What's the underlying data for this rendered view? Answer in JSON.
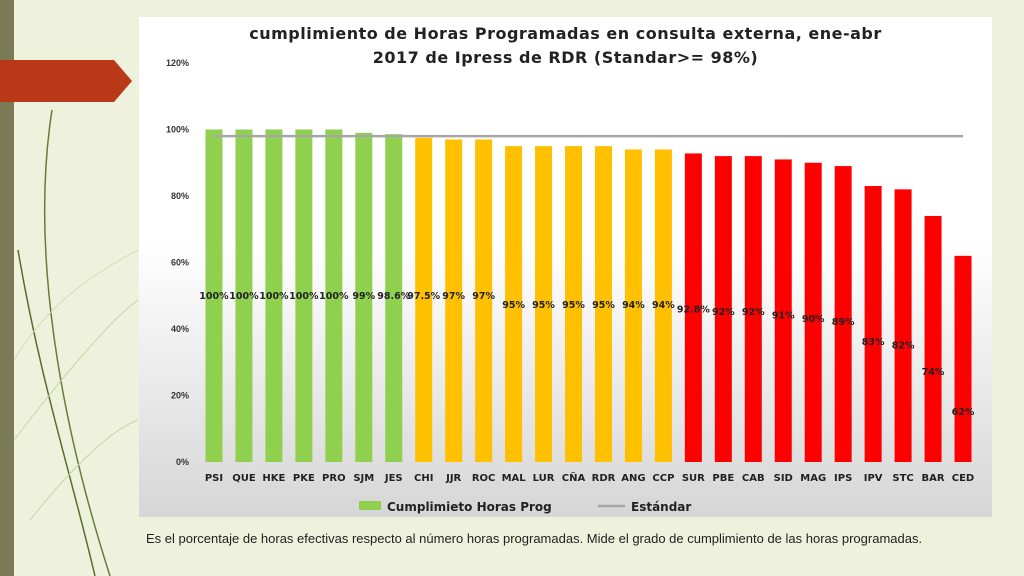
{
  "colors": {
    "green": "#8fd14f",
    "orange": "#ffc000",
    "red": "#ff0000",
    "standard_line": "#a6a6a6",
    "sidebar": "#7a7a55",
    "tab": "#b83818"
  },
  "chart_data": {
    "type": "bar",
    "title_lines": [
      "cumplimiento de Horas Programadas en consulta externa, ene-abr",
      "2017 de Ipress de RDR (Standar>= 98%)"
    ],
    "categories": [
      "PSI",
      "QUE",
      "HKE",
      "PKE",
      "PRO",
      "SJM",
      "JES",
      "CHI",
      "JJR",
      "ROC",
      "MAL",
      "LUR",
      "CÑA",
      "RDR",
      "ANG",
      "CCP",
      "SUR",
      "PBE",
      "CAB",
      "SID",
      "MAG",
      "IPS",
      "IPV",
      "STC",
      "BAR",
      "CED"
    ],
    "values": [
      100,
      100,
      100,
      100,
      100,
      99,
      98.6,
      97.5,
      97,
      97,
      95,
      95,
      95,
      95,
      94,
      94,
      92.8,
      92,
      92,
      91,
      90,
      89,
      83,
      82,
      74,
      62
    ],
    "data_labels": [
      "100%",
      "100%",
      "100%",
      "100%",
      "100%",
      "99%",
      "98.6%",
      "97.5%",
      "97%",
      "97%",
      "95%",
      "95%",
      "95%",
      "95%",
      "94%",
      "94%",
      "92.8%",
      "92%",
      "92%",
      "91%",
      "90%",
      "89%",
      "83%",
      "82%",
      "74%",
      "62%"
    ],
    "bar_colors": [
      "green",
      "green",
      "green",
      "green",
      "green",
      "green",
      "green",
      "orange",
      "orange",
      "orange",
      "orange",
      "orange",
      "orange",
      "orange",
      "orange",
      "orange",
      "red",
      "red",
      "red",
      "red",
      "red",
      "red",
      "red",
      "red",
      "red",
      "red"
    ],
    "standard_value": 98,
    "ylim": [
      0,
      120
    ],
    "yticks": [
      0,
      20,
      40,
      60,
      80,
      100,
      120
    ],
    "ytick_labels": [
      "0%",
      "20%",
      "40%",
      "60%",
      "80%",
      "100%",
      "120%"
    ],
    "legend": {
      "series_label": "Cumplimieto Horas Prog",
      "standard_label": "Estándar",
      "position": "bottom"
    }
  },
  "caption": "Es el porcentaje de horas efectivas respecto al número horas programadas. Mide el grado de cumplimiento de las horas programadas."
}
